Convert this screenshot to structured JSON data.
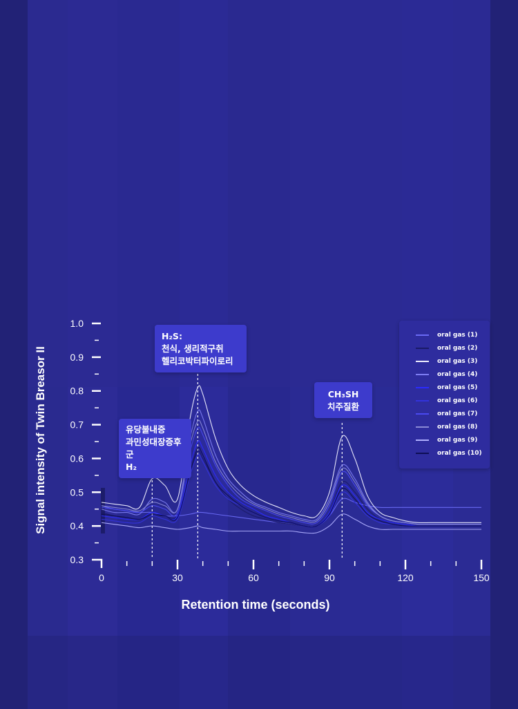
{
  "chart_data": {
    "type": "line",
    "ylabel": "Signal intensity of Twin Breasor II",
    "xlabel": "Retention time (seconds)",
    "xlim": [
      0,
      150
    ],
    "ylim": [
      0.3,
      1.0
    ],
    "xticks": [
      0,
      30,
      60,
      90,
      120,
      150
    ],
    "yticks": [
      "1.0",
      "0.9",
      "0.8",
      "0.7",
      "0.6",
      "0.5",
      "0.4",
      "0.3"
    ],
    "legend_position": "right",
    "x": [
      0,
      5,
      10,
      15,
      20,
      25,
      30,
      35,
      38,
      40,
      45,
      50,
      55,
      60,
      65,
      70,
      75,
      80,
      85,
      90,
      95,
      100,
      105,
      110,
      115,
      120,
      125,
      130,
      135,
      140,
      145,
      150
    ],
    "series": [
      {
        "name": "oral gas (1)",
        "color": "#6a6af5",
        "values": [
          0.46,
          0.45,
          0.445,
          0.44,
          0.44,
          0.43,
          0.43,
          0.435,
          0.44,
          0.44,
          0.435,
          0.43,
          0.425,
          0.42,
          0.415,
          0.41,
          0.405,
          0.4,
          0.4,
          0.43,
          0.48,
          0.47,
          0.46,
          0.455,
          0.455,
          0.455,
          0.455,
          0.455,
          0.455,
          0.455,
          0.455,
          0.455
        ]
      },
      {
        "name": "oral gas (2)",
        "color": "#1a1a66",
        "values": [
          0.44,
          0.43,
          0.425,
          0.42,
          0.43,
          0.43,
          0.43,
          0.55,
          0.62,
          0.6,
          0.53,
          0.48,
          0.45,
          0.43,
          0.42,
          0.41,
          0.405,
          0.4,
          0.4,
          0.44,
          0.53,
          0.5,
          0.45,
          0.42,
          0.41,
          0.405,
          0.4,
          0.4,
          0.4,
          0.4,
          0.4,
          0.4
        ]
      },
      {
        "name": "oral gas (3)",
        "color": "#f0f0ff",
        "values": [
          0.47,
          0.465,
          0.46,
          0.455,
          0.54,
          0.52,
          0.48,
          0.72,
          0.81,
          0.79,
          0.66,
          0.57,
          0.52,
          0.49,
          0.47,
          0.455,
          0.44,
          0.43,
          0.43,
          0.5,
          0.665,
          0.6,
          0.49,
          0.44,
          0.425,
          0.415,
          0.41,
          0.41,
          0.41,
          0.41,
          0.41,
          0.41
        ]
      },
      {
        "name": "oral gas (4)",
        "color": "#7d7df2",
        "values": [
          0.45,
          0.44,
          0.44,
          0.435,
          0.48,
          0.47,
          0.45,
          0.66,
          0.74,
          0.72,
          0.61,
          0.54,
          0.5,
          0.47,
          0.455,
          0.44,
          0.43,
          0.42,
          0.42,
          0.48,
          0.58,
          0.54,
          0.47,
          0.43,
          0.415,
          0.41,
          0.405,
          0.405,
          0.405,
          0.405,
          0.405,
          0.405
        ]
      },
      {
        "name": "oral gas (5)",
        "color": "#2b2bff",
        "values": [
          0.43,
          0.425,
          0.42,
          0.42,
          0.44,
          0.43,
          0.43,
          0.58,
          0.65,
          0.63,
          0.55,
          0.5,
          0.47,
          0.45,
          0.43,
          0.42,
          0.41,
          0.4,
          0.4,
          0.44,
          0.52,
          0.49,
          0.44,
          0.42,
          0.41,
          0.405,
          0.4,
          0.4,
          0.4,
          0.4,
          0.4,
          0.4
        ]
      },
      {
        "name": "oral gas (6)",
        "color": "#3333dd",
        "values": [
          0.42,
          0.415,
          0.41,
          0.41,
          0.43,
          0.42,
          0.42,
          0.55,
          0.61,
          0.59,
          0.52,
          0.48,
          0.46,
          0.44,
          0.425,
          0.415,
          0.41,
          0.4,
          0.4,
          0.43,
          0.5,
          0.47,
          0.43,
          0.41,
          0.405,
          0.4,
          0.4,
          0.4,
          0.4,
          0.4,
          0.4,
          0.4
        ]
      },
      {
        "name": "oral gas (7)",
        "color": "#4a4af0",
        "values": [
          0.455,
          0.45,
          0.445,
          0.44,
          0.46,
          0.45,
          0.44,
          0.62,
          0.69,
          0.67,
          0.58,
          0.52,
          0.48,
          0.46,
          0.445,
          0.43,
          0.42,
          0.41,
          0.41,
          0.46,
          0.56,
          0.52,
          0.46,
          0.43,
          0.415,
          0.41,
          0.405,
          0.405,
          0.405,
          0.405,
          0.405,
          0.405
        ]
      },
      {
        "name": "oral gas (8)",
        "color": "#8a8ad6",
        "values": [
          0.46,
          0.455,
          0.45,
          0.445,
          0.47,
          0.46,
          0.45,
          0.64,
          0.71,
          0.69,
          0.59,
          0.53,
          0.49,
          0.465,
          0.45,
          0.435,
          0.425,
          0.415,
          0.415,
          0.47,
          0.57,
          0.53,
          0.465,
          0.43,
          0.415,
          0.41,
          0.405,
          0.405,
          0.405,
          0.405,
          0.405,
          0.405
        ]
      },
      {
        "name": "oral gas (9)",
        "color": "#b0b0ff",
        "values": [
          0.41,
          0.405,
          0.4,
          0.395,
          0.4,
          0.395,
          0.39,
          0.395,
          0.4,
          0.395,
          0.39,
          0.385,
          0.385,
          0.385,
          0.385,
          0.385,
          0.385,
          0.38,
          0.38,
          0.4,
          0.435,
          0.42,
          0.4,
          0.39,
          0.39,
          0.39,
          0.39,
          0.39,
          0.39,
          0.39,
          0.39,
          0.39
        ]
      },
      {
        "name": "oral gas (10)",
        "color": "#0e0e55",
        "values": [
          0.435,
          0.43,
          0.425,
          0.42,
          0.435,
          0.43,
          0.425,
          0.56,
          0.63,
          0.61,
          0.53,
          0.49,
          0.46,
          0.44,
          0.425,
          0.415,
          0.41,
          0.4,
          0.4,
          0.435,
          0.51,
          0.48,
          0.435,
          0.415,
          0.405,
          0.4,
          0.4,
          0.4,
          0.4,
          0.4,
          0.4,
          0.4
        ]
      }
    ],
    "annotations": [
      {
        "x": 20,
        "lines": [
          "유당불내증",
          "과민성대장증후군",
          "H₂"
        ]
      },
      {
        "x": 38,
        "lines": [
          "H₂S:",
          "천식, 생리적구취",
          "헬리코박터파이로리"
        ]
      },
      {
        "x": 95,
        "lines": [
          "CH₃SH",
          "치주질환"
        ]
      }
    ]
  }
}
